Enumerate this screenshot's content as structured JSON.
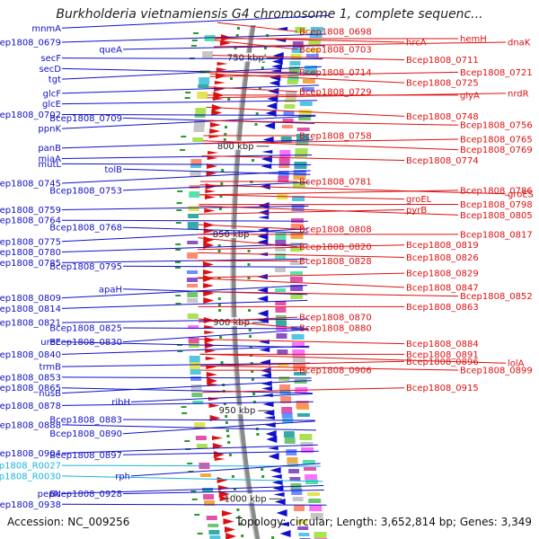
{
  "title": "Burkholderia vietnamiensis G4 chromosome 1, complete sequenc...",
  "accession": "Accession: NC_009256",
  "topology": "Topology: circular; Length: 3,652,814 bp; Genes: 3,349",
  "colors": {
    "left": "#1010c8",
    "leftRna": "#19b4dc",
    "right": "#dd1010",
    "backbone": "#8a8a8a"
  },
  "scale_labels": [
    {
      "text": "750 kbp",
      "kbp": 750
    },
    {
      "text": "800 kbp",
      "kbp": 800
    },
    {
      "text": "850 kbp",
      "kbp": 850
    },
    {
      "text": "900 kbp",
      "kbp": 900
    },
    {
      "text": "950 kbp",
      "kbp": 950
    },
    {
      "text": "1000 kbp",
      "kbp": 1000
    }
  ],
  "left_labels": [
    {
      "text": "mnmA",
      "kbp": 733,
      "col": 0,
      "rna": false
    },
    {
      "text": "Bcep1808_0679",
      "kbp": 741,
      "col": 0,
      "rna": false
    },
    {
      "text": "queA",
      "kbp": 745,
      "col": 1,
      "rna": false
    },
    {
      "text": "secF",
      "kbp": 750,
      "col": 0,
      "rna": false
    },
    {
      "text": "secD",
      "kbp": 756,
      "col": 0,
      "rna": false
    },
    {
      "text": "tgt",
      "kbp": 762,
      "col": 0,
      "rna": false
    },
    {
      "text": "glcF",
      "kbp": 770,
      "col": 0,
      "rna": false
    },
    {
      "text": "glcE",
      "kbp": 776,
      "col": 0,
      "rna": false
    },
    {
      "text": "Bcep1808_0702",
      "kbp": 782,
      "col": 0,
      "rna": false
    },
    {
      "text": "Bcep1808_0709",
      "kbp": 784,
      "col": 1,
      "rna": false
    },
    {
      "text": "ppnK",
      "kbp": 790,
      "col": 0,
      "rna": false
    },
    {
      "text": "panB",
      "kbp": 801,
      "col": 0,
      "rna": false
    },
    {
      "text": "miaA",
      "kbp": 807,
      "col": 0,
      "rna": false
    },
    {
      "text": "mutL",
      "kbp": 810,
      "col": 0,
      "rna": false
    },
    {
      "text": "tolB",
      "kbp": 813,
      "col": 1,
      "rna": false
    },
    {
      "text": "Bcep1808_0745",
      "kbp": 821,
      "col": 0,
      "rna": false
    },
    {
      "text": "Bcep1808_0753",
      "kbp": 825,
      "col": 1,
      "rna": false
    },
    {
      "text": "Bcep1808_0759",
      "kbp": 836,
      "col": 0,
      "rna": false
    },
    {
      "text": "Bcep1808_0764",
      "kbp": 842,
      "col": 0,
      "rna": false
    },
    {
      "text": "Bcep1808_0768",
      "kbp": 846,
      "col": 1,
      "rna": false
    },
    {
      "text": "Bcep1808_0775",
      "kbp": 854,
      "col": 0,
      "rna": false
    },
    {
      "text": "Bcep1808_0780",
      "kbp": 860,
      "col": 0,
      "rna": false
    },
    {
      "text": "Bcep1808_0785",
      "kbp": 866,
      "col": 0,
      "rna": false
    },
    {
      "text": "Bcep1808_0795",
      "kbp": 868,
      "col": 1,
      "rna": false
    },
    {
      "text": "apaH",
      "kbp": 881,
      "col": 1,
      "rna": false
    },
    {
      "text": "Bcep1808_0809",
      "kbp": 886,
      "col": 0,
      "rna": false
    },
    {
      "text": "Bcep1808_0814",
      "kbp": 892,
      "col": 0,
      "rna": false
    },
    {
      "text": "Bcep1808_0821",
      "kbp": 900,
      "col": 0,
      "rna": false
    },
    {
      "text": "Bcep1808_0825",
      "kbp": 903,
      "col": 1,
      "rna": false
    },
    {
      "text": "ureE",
      "kbp": 911,
      "col": 0,
      "rna": false
    },
    {
      "text": "Bcep1808_0830",
      "kbp": 911,
      "col": 1,
      "rna": false
    },
    {
      "text": "Bcep1808_0840",
      "kbp": 918,
      "col": 0,
      "rna": false
    },
    {
      "text": "trmB",
      "kbp": 925,
      "col": 0,
      "rna": false
    },
    {
      "text": "Bcep1808_0853",
      "kbp": 931,
      "col": 0,
      "rna": false
    },
    {
      "text": "Bcep1808_0865",
      "kbp": 937,
      "col": 0,
      "rna": false
    },
    {
      "text": "nusB",
      "kbp": 940,
      "col": 0,
      "rna": false
    },
    {
      "text": "ribH",
      "kbp": 945,
      "col": 2,
      "rna": false
    },
    {
      "text": "Bcep1808_0878",
      "kbp": 947,
      "col": 0,
      "rna": false
    },
    {
      "text": "Bcep1808_0883",
      "kbp": 955,
      "col": 1,
      "rna": false
    },
    {
      "text": "Bcep1808_0888",
      "kbp": 958,
      "col": 0,
      "rna": false
    },
    {
      "text": "Bcep1808_0890",
      "kbp": 963,
      "col": 1,
      "rna": false
    },
    {
      "text": "Bcep1808_0904",
      "kbp": 974,
      "col": 0,
      "rna": false
    },
    {
      "text": "Bcep1808_0897",
      "kbp": 975,
      "col": 1,
      "rna": false
    },
    {
      "text": "Bcep1808_R0027",
      "kbp": 981,
      "col": 0,
      "rna": true
    },
    {
      "text": "Bcep1808_R0030",
      "kbp": 987,
      "col": 0,
      "rna": true
    },
    {
      "text": "rph",
      "kbp": 987,
      "col": 2,
      "rna": false
    },
    {
      "text": "pepN",
      "kbp": 997,
      "col": 0,
      "rna": false
    },
    {
      "text": "Bcep1808_0928",
      "kbp": 997,
      "col": 1,
      "rna": false
    },
    {
      "text": "Bcep1808_0938",
      "kbp": 1003,
      "col": 0,
      "rna": false
    }
  ],
  "right_labels": [
    {
      "text": "Bcep1808_0698",
      "kbp": 735,
      "col": 0
    },
    {
      "text": "hrcA",
      "kbp": 741,
      "col": 1
    },
    {
      "text": "hemH",
      "kbp": 739,
      "col": 2
    },
    {
      "text": "dnaK",
      "kbp": 741,
      "col": 3
    },
    {
      "text": "Bcep1808_0703",
      "kbp": 745,
      "col": 0
    },
    {
      "text": "Bcep1808_0711",
      "kbp": 751,
      "col": 1
    },
    {
      "text": "Bcep1808_0714",
      "kbp": 758,
      "col": 0
    },
    {
      "text": "Bcep1808_0721",
      "kbp": 758,
      "col": 2
    },
    {
      "text": "Bcep1808_0725",
      "kbp": 764,
      "col": 1
    },
    {
      "text": "Bcep1808_0729",
      "kbp": 769,
      "col": 0
    },
    {
      "text": "glyA",
      "kbp": 771,
      "col": 2
    },
    {
      "text": "nrdR",
      "kbp": 770,
      "col": 3
    },
    {
      "text": "Bcep1808_0748",
      "kbp": 783,
      "col": 1
    },
    {
      "text": "Bcep1808_0756",
      "kbp": 788,
      "col": 2
    },
    {
      "text": "Bcep1808_0758",
      "kbp": 794,
      "col": 0
    },
    {
      "text": "Bcep1808_0765",
      "kbp": 796,
      "col": 2
    },
    {
      "text": "Bcep1808_0769",
      "kbp": 802,
      "col": 2
    },
    {
      "text": "Bcep1808_0774",
      "kbp": 808,
      "col": 1
    },
    {
      "text": "Bcep1808_0781",
      "kbp": 820,
      "col": 0
    },
    {
      "text": "Bcep1808_0786",
      "kbp": 825,
      "col": 2
    },
    {
      "text": "groES",
      "kbp": 827,
      "col": 3
    },
    {
      "text": "groEL",
      "kbp": 830,
      "col": 1
    },
    {
      "text": "Bcep1808_0798",
      "kbp": 833,
      "col": 2
    },
    {
      "text": "pyrB",
      "kbp": 836,
      "col": 1
    },
    {
      "text": "Bcep1808_0805",
      "kbp": 839,
      "col": 2
    },
    {
      "text": "Bcep1808_0808",
      "kbp": 847,
      "col": 0
    },
    {
      "text": "Bcep1808_0817",
      "kbp": 850,
      "col": 2
    },
    {
      "text": "Bcep1808_0819",
      "kbp": 856,
      "col": 1
    },
    {
      "text": "Bcep1808_0820",
      "kbp": 857,
      "col": 0
    },
    {
      "text": "Bcep1808_0826",
      "kbp": 863,
      "col": 1
    },
    {
      "text": "Bcep1808_0828",
      "kbp": 865,
      "col": 0
    },
    {
      "text": "Bcep1808_0829",
      "kbp": 872,
      "col": 1
    },
    {
      "text": "Bcep1808_0847",
      "kbp": 880,
      "col": 1
    },
    {
      "text": "Bcep1808_0852",
      "kbp": 885,
      "col": 2
    },
    {
      "text": "Bcep1808_0863",
      "kbp": 891,
      "col": 1
    },
    {
      "text": "Bcep1808_0870",
      "kbp": 897,
      "col": 0
    },
    {
      "text": "Bcep1808_0880",
      "kbp": 903,
      "col": 0
    },
    {
      "text": "Bcep1808_0884",
      "kbp": 912,
      "col": 1
    },
    {
      "text": "Bcep1808_0891",
      "kbp": 918,
      "col": 1
    },
    {
      "text": "Bcep1808_0896",
      "kbp": 922,
      "col": 1
    },
    {
      "text": "lolA",
      "kbp": 923,
      "col": 3
    },
    {
      "text": "Bcep1808_0899",
      "kbp": 927,
      "col": 2
    },
    {
      "text": "Bcep1808_0906",
      "kbp": 927,
      "col": 0
    },
    {
      "text": "Bcep1808_0915",
      "kbp": 937,
      "col": 1
    }
  ]
}
